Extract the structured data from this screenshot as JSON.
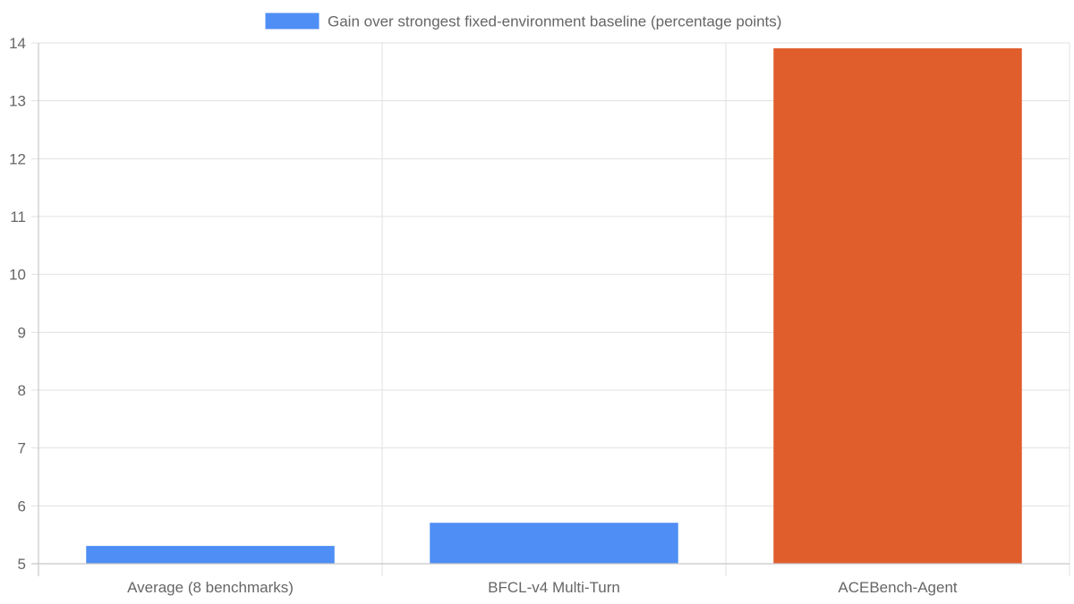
{
  "chart_data": {
    "type": "bar",
    "categories": [
      "Average (8 benchmarks)",
      "BFCL-v4 Multi-Turn",
      "ACEBench-Agent"
    ],
    "series": [
      {
        "name": "Gain over strongest fixed-environment baseline (percentage points)",
        "values": [
          5.3,
          5.7,
          13.9
        ],
        "colors": [
          "#4f8ef5",
          "#4f8ef5",
          "#e05d2c"
        ]
      }
    ],
    "legend": {
      "position": "top-center",
      "label": "Gain over strongest fixed-environment baseline (percentage points)",
      "color": "#4f8ef5"
    },
    "ylim": [
      5,
      14
    ],
    "yticks": [
      "5",
      "6",
      "7",
      "8",
      "9",
      "10",
      "11",
      "12",
      "13",
      "14"
    ],
    "grid": true,
    "title": "",
    "xlabel": "",
    "ylabel": ""
  }
}
